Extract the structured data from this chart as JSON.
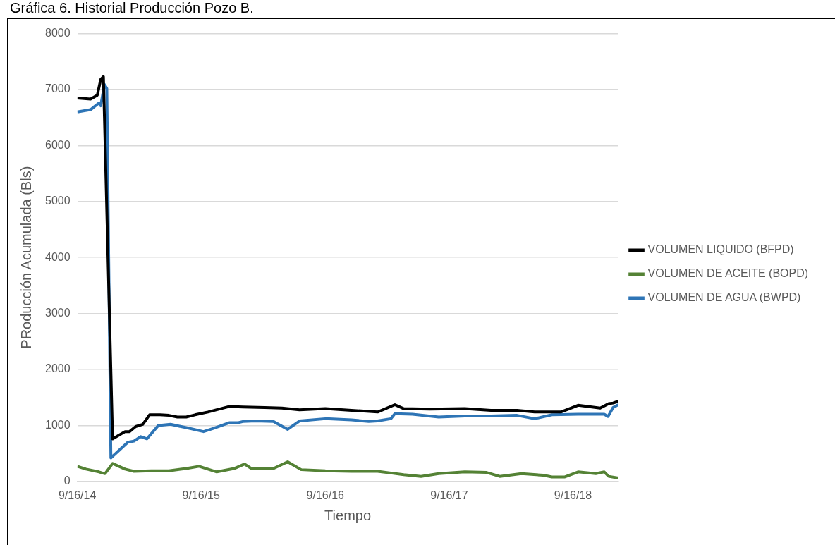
{
  "chart_data": {
    "type": "line",
    "title": "Gráfica 6. Historial Producción Pozo B.",
    "xlabel": "Tiempo",
    "ylabel": "PRoducción Acumulada (Bls)",
    "xlim": [
      "2014-09-16",
      "2019-01-27"
    ],
    "xticks": [
      {
        "value": "2014-09-16",
        "label": "9/16/14"
      },
      {
        "value": "2015-09-16",
        "label": "9/16/15"
      },
      {
        "value": "2016-09-16",
        "label": "9/16/16"
      },
      {
        "value": "2017-09-16",
        "label": "9/16/17"
      },
      {
        "value": "2018-09-16",
        "label": "9/16/18"
      }
    ],
    "ylim": [
      0,
      8000
    ],
    "yticks": [
      0,
      1000,
      2000,
      3000,
      4000,
      5000,
      6000,
      7000,
      8000
    ],
    "grid": "y",
    "legend": "right",
    "marker": "none",
    "line_style": "solid",
    "series": [
      {
        "name": "VOLUMEN LIQUIDO (BFPD)",
        "color": "#000000",
        "x": [
          "2014-09-16",
          "2014-10-25",
          "2014-11-14",
          "2014-11-24",
          "2014-12-02",
          "2014-12-29",
          "2015-02-04",
          "2015-02-17",
          "2015-03-07",
          "2015-03-28",
          "2015-04-17",
          "2015-05-18",
          "2015-06-13",
          "2015-07-08",
          "2015-08-03",
          "2015-08-29",
          "2015-10-06",
          "2015-11-01",
          "2015-12-09",
          "2016-01-17",
          "2016-03-21",
          "2016-05-11",
          "2016-07-02",
          "2016-09-16",
          "2016-12-02",
          "2017-02-17",
          "2017-04-09",
          "2017-05-05",
          "2017-07-21",
          "2017-11-01",
          "2018-01-17",
          "2018-04-04",
          "2018-05-26",
          "2018-07-16",
          "2018-08-11",
          "2018-10-01",
          "2018-12-05",
          "2018-12-30",
          "2019-01-12",
          "2019-01-27"
        ],
        "values": [
          6850,
          6830,
          6900,
          7180,
          7230,
          760,
          890,
          890,
          980,
          1020,
          1190,
          1190,
          1180,
          1150,
          1150,
          1190,
          1240,
          1280,
          1340,
          1330,
          1320,
          1310,
          1280,
          1300,
          1270,
          1240,
          1370,
          1300,
          1290,
          1300,
          1270,
          1270,
          1240,
          1240,
          1240,
          1360,
          1310,
          1390,
          1400,
          1430
        ]
      },
      {
        "name": "VOLUMEN DE ACEITE (BOPD)",
        "color": "#548235",
        "x": [
          "2014-09-16",
          "2014-10-12",
          "2014-11-19",
          "2014-11-29",
          "2014-12-07",
          "2014-12-29",
          "2015-02-04",
          "2015-03-02",
          "2015-04-22",
          "2015-06-13",
          "2015-08-03",
          "2015-09-10",
          "2015-10-06",
          "2015-11-01",
          "2015-12-22",
          "2016-01-22",
          "2016-02-11",
          "2016-04-16",
          "2016-05-28",
          "2016-07-07",
          "2016-09-16",
          "2016-12-02",
          "2017-02-17",
          "2017-03-28",
          "2017-05-05",
          "2017-06-25",
          "2017-08-16",
          "2017-11-01",
          "2018-01-04",
          "2018-02-12",
          "2018-04-17",
          "2018-06-20",
          "2018-07-16",
          "2018-08-23",
          "2018-10-01",
          "2018-11-22",
          "2018-12-17",
          "2018-12-30",
          "2019-01-27"
        ],
        "values": [
          270,
          220,
          170,
          150,
          140,
          320,
          220,
          180,
          190,
          190,
          230,
          270,
          220,
          170,
          230,
          310,
          230,
          230,
          350,
          210,
          190,
          180,
          180,
          150,
          120,
          90,
          140,
          170,
          160,
          90,
          140,
          110,
          80,
          80,
          170,
          140,
          170,
          90,
          60
        ]
      },
      {
        "name": "VOLUMEN DE AGUA (BWPD)",
        "color": "#2e75b6",
        "x": [
          "2014-09-16",
          "2014-10-25",
          "2014-11-19",
          "2014-11-24",
          "2014-12-05",
          "2014-12-12",
          "2014-12-24",
          "2015-02-12",
          "2015-03-02",
          "2015-03-22",
          "2015-04-09",
          "2015-05-13",
          "2015-06-18",
          "2015-08-03",
          "2015-09-23",
          "2015-10-19",
          "2015-12-09",
          "2016-01-04",
          "2016-01-17",
          "2016-02-24",
          "2016-04-16",
          "2016-05-28",
          "2016-07-02",
          "2016-09-16",
          "2016-12-02",
          "2017-01-22",
          "2017-02-17",
          "2017-03-28",
          "2017-04-09",
          "2017-05-31",
          "2017-08-16",
          "2017-11-01",
          "2018-01-17",
          "2018-04-04",
          "2018-05-26",
          "2018-07-16",
          "2018-10-01",
          "2018-12-17",
          "2018-12-28",
          "2019-01-12",
          "2019-01-27"
        ],
        "values": [
          6600,
          6640,
          6760,
          6710,
          7090,
          7020,
          420,
          700,
          720,
          800,
          760,
          1000,
          1020,
          960,
          890,
          940,
          1050,
          1050,
          1070,
          1080,
          1070,
          930,
          1080,
          1120,
          1100,
          1070,
          1080,
          1120,
          1210,
          1200,
          1150,
          1170,
          1170,
          1180,
          1120,
          1190,
          1200,
          1200,
          1160,
          1320,
          1370
        ]
      }
    ]
  }
}
